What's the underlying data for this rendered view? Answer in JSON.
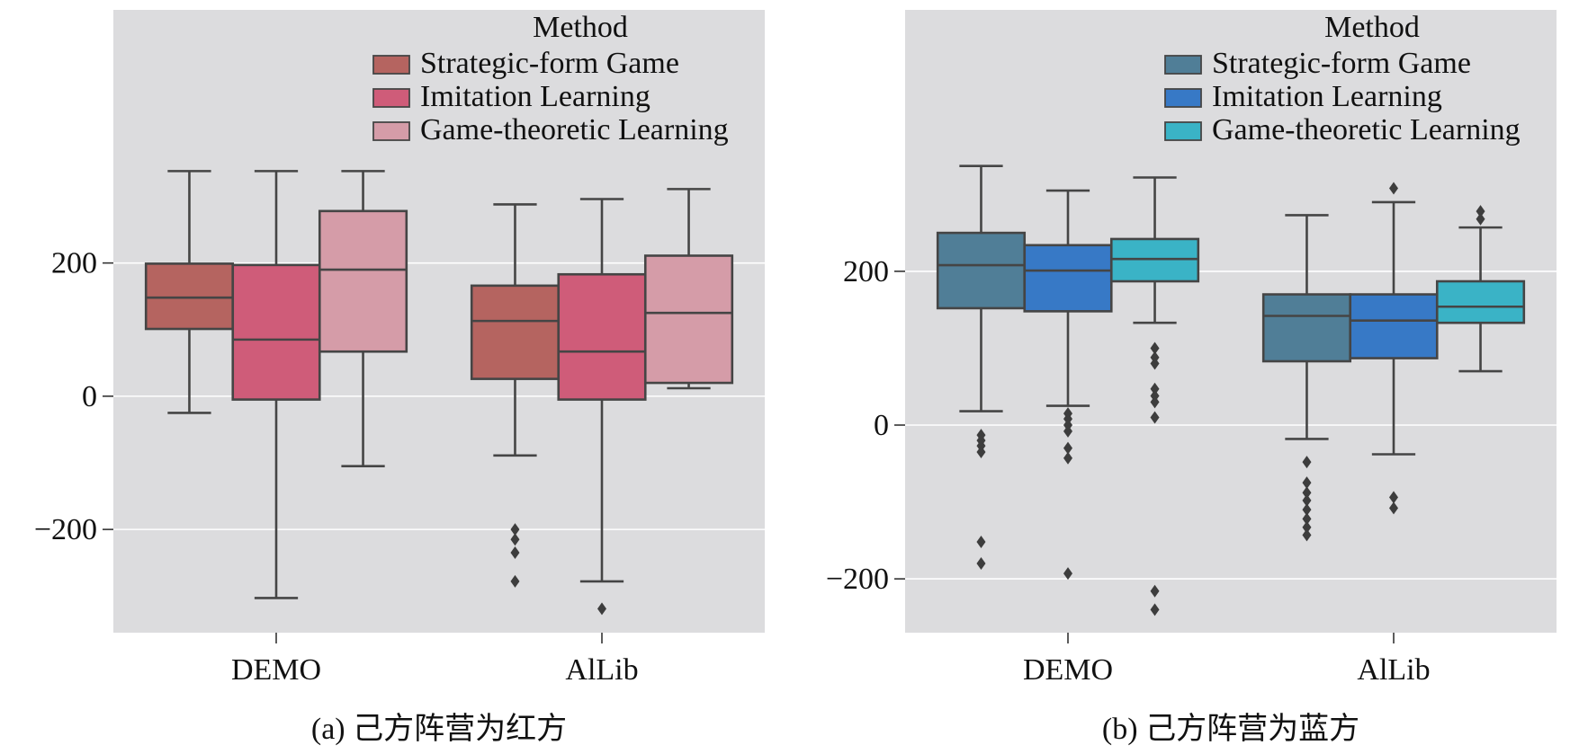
{
  "chart_data": [
    {
      "type": "box",
      "caption": "(a) 己方阵营为红方",
      "categories": [
        "DEMO",
        "AlLib"
      ],
      "ylim": [
        -355,
        580
      ],
      "yticks": [
        -200,
        0,
        200
      ],
      "ytick_labels": [
        "−200",
        "0",
        "200"
      ],
      "grid": true,
      "legend_title": "Method",
      "legend_position": "top-right",
      "series": [
        {
          "name": "Strategic-form Game",
          "color": "#b56460",
          "boxes": [
            {
              "q1": 101,
              "median": 148,
              "q3": 199,
              "whisker_low": -25,
              "whisker_high": 338,
              "outliers": []
            },
            {
              "q1": 26,
              "median": 113,
              "q3": 166,
              "whisker_low": -89,
              "whisker_high": 288,
              "outliers": [
                -200,
                -215,
                -235,
                -278
              ]
            }
          ]
        },
        {
          "name": "Imitation Learning",
          "color": "#cf5c79",
          "boxes": [
            {
              "q1": -5,
              "median": 85,
              "q3": 197,
              "whisker_low": -303,
              "whisker_high": 338,
              "outliers": []
            },
            {
              "q1": -5,
              "median": 67,
              "q3": 183,
              "whisker_low": -278,
              "whisker_high": 296,
              "outliers": [
                -319
              ]
            }
          ]
        },
        {
          "name": "Game-theoretic Learning",
          "color": "#d59ca8",
          "boxes": [
            {
              "q1": 67,
              "median": 190,
              "q3": 278,
              "whisker_low": -105,
              "whisker_high": 338,
              "outliers": []
            },
            {
              "q1": 20,
              "median": 125,
              "q3": 211,
              "whisker_low": 12,
              "whisker_high": 311,
              "outliers": []
            }
          ]
        }
      ]
    },
    {
      "type": "box",
      "caption": "(b) 己方阵营为蓝方",
      "categories": [
        "DEMO",
        "AlLib"
      ],
      "ylim": [
        -270,
        540
      ],
      "yticks": [
        -200,
        0,
        200
      ],
      "ytick_labels": [
        "−200",
        "0",
        "200"
      ],
      "grid": true,
      "legend_title": "Method",
      "legend_position": "top-right",
      "series": [
        {
          "name": "Strategic-form Game",
          "color": "#507e97",
          "boxes": [
            {
              "q1": 152,
              "median": 208,
              "q3": 250,
              "whisker_low": 18,
              "whisker_high": 337,
              "outliers": [
                -13,
                -20,
                -27,
                -35,
                -152,
                -180
              ]
            },
            {
              "q1": 83,
              "median": 142,
              "q3": 170,
              "whisker_low": -18,
              "whisker_high": 273,
              "outliers": [
                -48,
                -75,
                -88,
                -98,
                -110,
                -122,
                -133,
                -143
              ]
            }
          ]
        },
        {
          "name": "Imitation Learning",
          "color": "#3779c6",
          "boxes": [
            {
              "q1": 148,
              "median": 201,
              "q3": 234,
              "whisker_low": 25,
              "whisker_high": 305,
              "outliers": [
                15,
                8,
                0,
                -8,
                -30,
                -43,
                -193
              ]
            },
            {
              "q1": 87,
              "median": 136,
              "q3": 170,
              "whisker_low": -38,
              "whisker_high": 290,
              "outliers": [
                308,
                -94,
                -108
              ]
            }
          ]
        },
        {
          "name": "Game-theoretic Learning",
          "color": "#3ab3c6",
          "boxes": [
            {
              "q1": 187,
              "median": 216,
              "q3": 242,
              "whisker_low": 133,
              "whisker_high": 322,
              "outliers": [
                100,
                88,
                80,
                47,
                38,
                30,
                10,
                -216,
                -240
              ]
            },
            {
              "q1": 133,
              "median": 154,
              "q3": 187,
              "whisker_low": 70,
              "whisker_high": 257,
              "outliers": [
                278,
                268
              ]
            }
          ]
        }
      ]
    }
  ]
}
